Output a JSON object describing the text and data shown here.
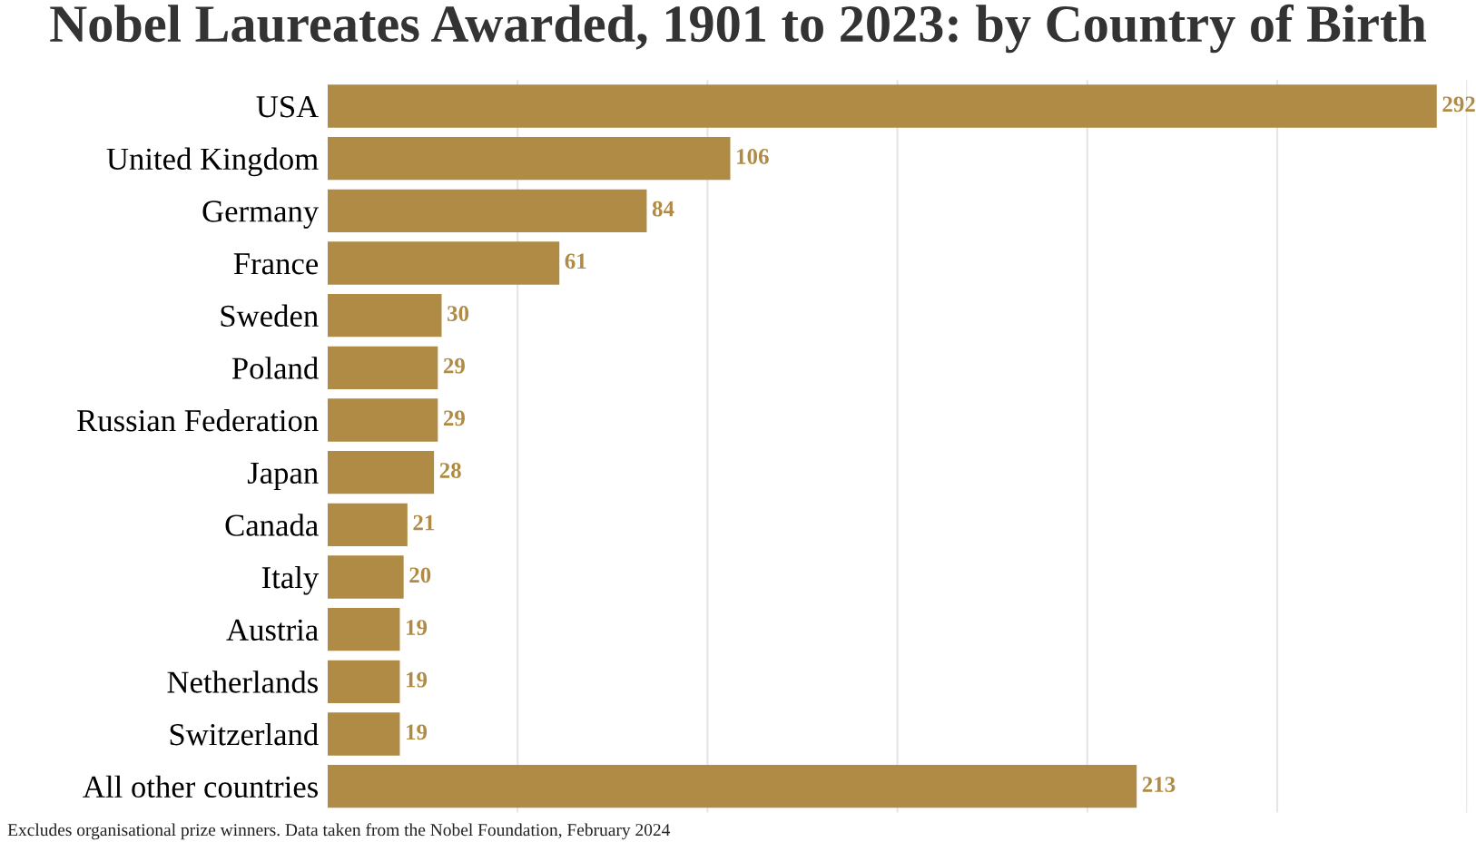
{
  "chart_data": {
    "type": "bar",
    "orientation": "horizontal",
    "title": "Nobel Laureates Awarded, 1901 to 2023: by Country of Birth",
    "categories": [
      "USA",
      "United Kingdom",
      "Germany",
      "France",
      "Sweden",
      "Poland",
      "Russian Federation",
      "Japan",
      "Canada",
      "Italy",
      "Austria",
      "Netherlands",
      "Switzerland",
      "All other countries"
    ],
    "values": [
      292,
      106,
      84,
      61,
      30,
      29,
      29,
      28,
      21,
      20,
      19,
      19,
      19,
      213
    ],
    "color": "#b08b45",
    "xlim": [
      0,
      300
    ],
    "xticks": [
      {
        "value": 50,
        "label": null
      },
      {
        "value": 100,
        "label": null
      },
      {
        "value": 150,
        "label": null
      },
      {
        "value": 200,
        "label": null
      },
      {
        "value": 250,
        "label": null
      },
      {
        "value": 300,
        "label": null
      }
    ],
    "tick_labels": "y",
    "grid": "x",
    "data_labels": true,
    "legend": false,
    "annotations": [
      "Excludes organisational prize winners. Data taken from the Nobel Foundation, February 2024"
    ]
  }
}
